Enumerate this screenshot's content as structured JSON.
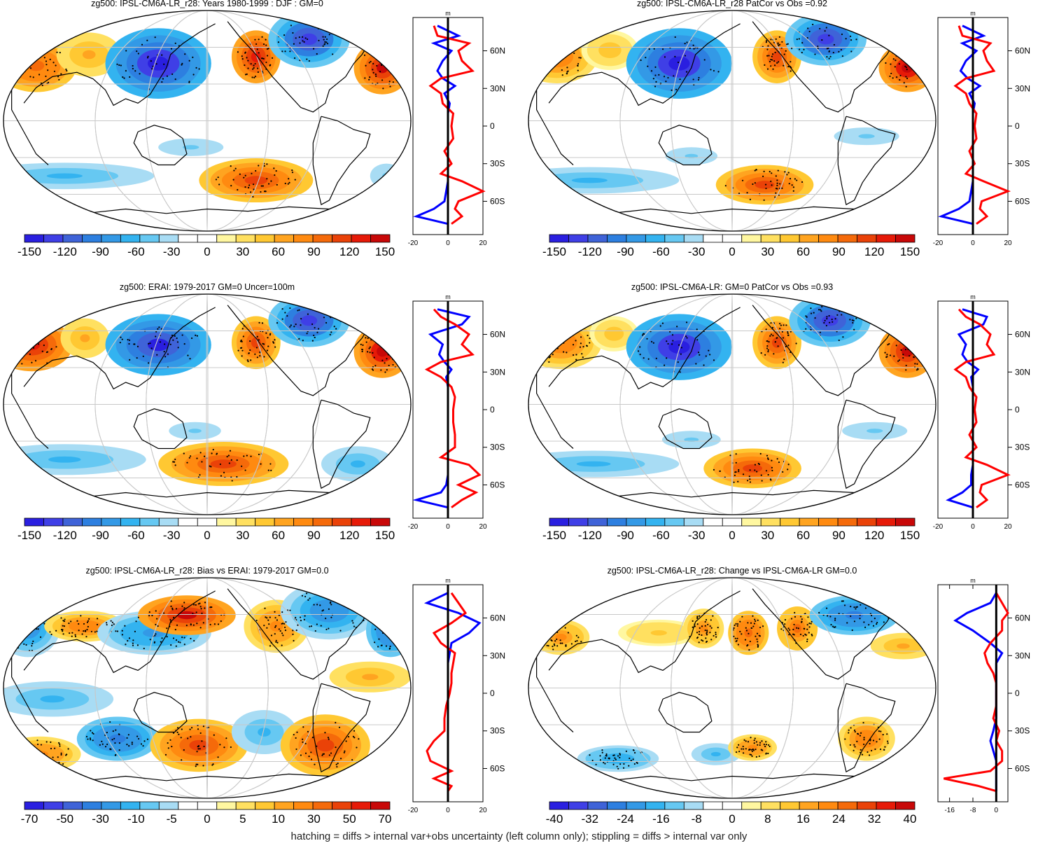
{
  "footer": "hatching = diffs > internal var+obs uncertainty (left column only); stippling = diffs > internal var only",
  "chart_data": [
    {
      "type": "heatmap",
      "title": "zg500: IPSL-CM6A-LR_r28: Years 1980-1999 : DJF : GM=0",
      "colorbar_ticks": [
        "-150",
        "-120",
        "-90",
        "-60",
        "-30",
        "0",
        "30",
        "60",
        "90",
        "120",
        "150"
      ],
      "zonal_profile": {
        "unit": "m",
        "xticks": [
          "-20",
          "0",
          "20"
        ],
        "xrange": [
          -20,
          20
        ],
        "lat_labels": [
          "60N",
          "30N",
          "0",
          "30S",
          "60S"
        ]
      }
    },
    {
      "type": "heatmap",
      "title": "zg500: IPSL-CM6A-LR_r28 PatCor vs Obs =0.92",
      "colorbar_ticks": [
        "-150",
        "-120",
        "-90",
        "-60",
        "-30",
        "0",
        "30",
        "60",
        "90",
        "120",
        "150"
      ],
      "zonal_profile": {
        "unit": "m",
        "xticks": [
          "-20",
          "0",
          "20"
        ],
        "xrange": [
          -20,
          20
        ],
        "lat_labels": [
          "60N",
          "30N",
          "0",
          "30S",
          "60S"
        ]
      }
    },
    {
      "type": "heatmap",
      "title": "zg500: ERAI: 1979-2017 GM=0 Uncer=100m",
      "colorbar_ticks": [
        "-150",
        "-120",
        "-90",
        "-60",
        "-30",
        "0",
        "30",
        "60",
        "90",
        "120",
        "150"
      ],
      "zonal_profile": {
        "unit": "m",
        "xticks": [
          "-20",
          "0",
          "20"
        ],
        "xrange": [
          -20,
          20
        ],
        "lat_labels": [
          "60N",
          "30N",
          "0",
          "30S",
          "60S"
        ]
      }
    },
    {
      "type": "heatmap",
      "title": "zg500: IPSL-CM6A-LR: GM=0 PatCor vs Obs =0.93",
      "colorbar_ticks": [
        "-150",
        "-120",
        "-90",
        "-60",
        "-30",
        "0",
        "30",
        "60",
        "90",
        "120",
        "150"
      ],
      "zonal_profile": {
        "unit": "m",
        "xticks": [
          "-20",
          "0",
          "20"
        ],
        "xrange": [
          -20,
          20
        ],
        "lat_labels": [
          "60N",
          "30N",
          "0",
          "30S",
          "60S"
        ]
      }
    },
    {
      "type": "heatmap",
      "title": "zg500: IPSL-CM6A-LR_r28: Bias vs ERAI: 1979-2017 GM=0.0",
      "colorbar_ticks": [
        "-70",
        "-50",
        "-30",
        "-10",
        "-5",
        "0",
        "5",
        "10",
        "30",
        "50",
        "70"
      ],
      "zonal_profile": {
        "unit": "m",
        "xticks": [
          "-20",
          "0",
          "20"
        ],
        "xrange": [
          -20,
          20
        ],
        "lat_labels": [
          "60N",
          "30N",
          "0",
          "30S",
          "60S"
        ]
      }
    },
    {
      "type": "heatmap",
      "title": "zg500: IPSL-CM6A-LR_r28: Change vs IPSL-CM6A-LR GM=0.0",
      "colorbar_ticks": [
        "-40",
        "-32",
        "-24",
        "-16",
        "-8",
        "0",
        "8",
        "16",
        "24",
        "32",
        "40"
      ],
      "zonal_profile": {
        "unit": "m",
        "xticks": [
          "-16",
          "-8",
          "0"
        ],
        "xrange": [
          -20,
          4
        ],
        "lat_labels": [
          "60N",
          "30N",
          "0",
          "30S",
          "60S"
        ]
      }
    }
  ],
  "colors": {
    "ramp": [
      "#2a1fe0",
      "#3f3fe6",
      "#3f63d8",
      "#2d7fe0",
      "#3399e6",
      "#33b3f0",
      "#66c8f2",
      "#a8dcf4",
      "#ffffff",
      "#ffffff",
      "#fff7a0",
      "#ffe060",
      "#ffc832",
      "#ffa420",
      "#ff8a10",
      "#f56a0a",
      "#ea4208",
      "#e61a08",
      "#c80808"
    ],
    "profile_blue": "#0000ff",
    "profile_red": "#ff0000",
    "land_outline": "#000000",
    "graticule": "#c8c8c8"
  }
}
